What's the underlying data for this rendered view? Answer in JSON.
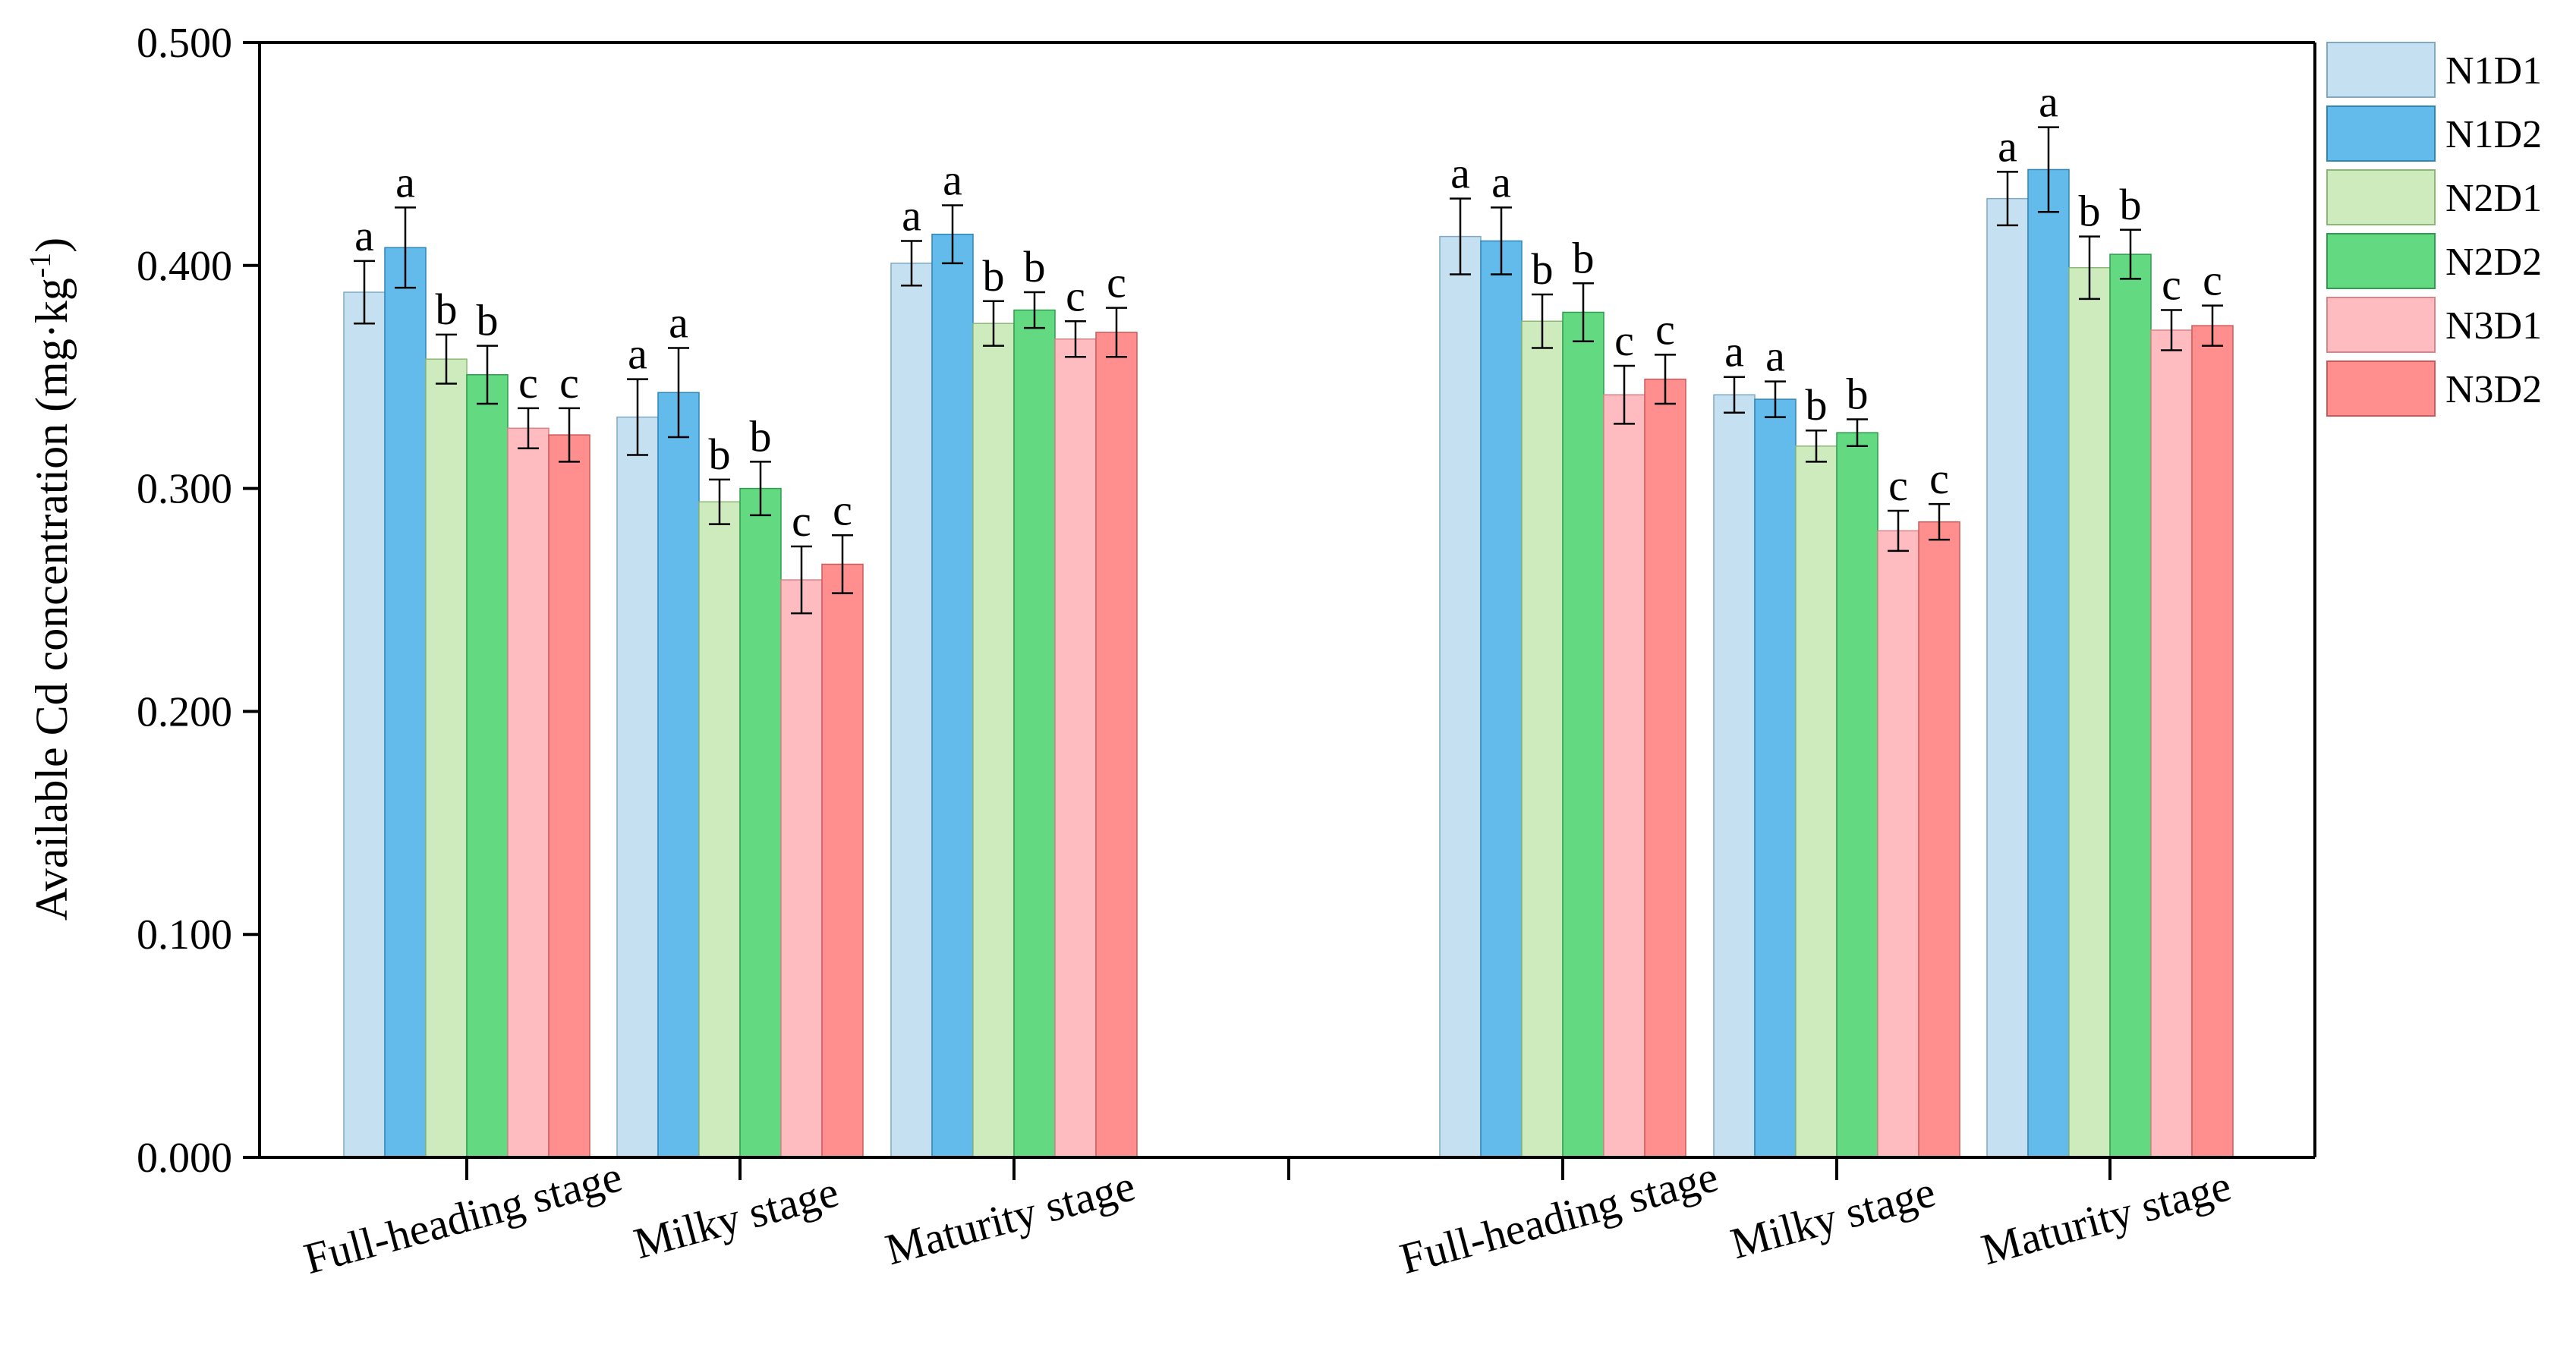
{
  "chart_data": {
    "type": "bar",
    "title": "",
    "xlabel": "",
    "ylabel": "Available Cd concentration (mg·kg",
    "ylabel_sup": "-1",
    "ylabel_close": ")",
    "ylim": [
      0,
      0.5
    ],
    "yticks": [
      0,
      0.1,
      0.2,
      0.3,
      0.4,
      0.5
    ],
    "ytick_labels": [
      "0.000",
      "0.100",
      "0.200",
      "0.300",
      "0.400",
      "0.500"
    ],
    "legend_position": "right",
    "series": [
      {
        "name": "N1D1",
        "color": "#c5e1f1",
        "stroke": "#7fa9c2"
      },
      {
        "name": "N1D2",
        "color": "#62bbeb",
        "stroke": "#2f86b6"
      },
      {
        "name": "N2D1",
        "color": "#cdebbd",
        "stroke": "#8cb877"
      },
      {
        "name": "N2D2",
        "color": "#63da82",
        "stroke": "#2e9d4e"
      },
      {
        "name": "N3D1",
        "color": "#ffbcc0",
        "stroke": "#d98387"
      },
      {
        "name": "N3D2",
        "color": "#ff8e8e",
        "stroke": "#cc5a5a"
      }
    ],
    "groups": [
      {
        "categories": [
          {
            "label": "Full-heading stage",
            "values": [
              0.388,
              0.408,
              0.358,
              0.351,
              0.327,
              0.324
            ],
            "errors": [
              0.014,
              0.018,
              0.011,
              0.013,
              0.009,
              0.012
            ],
            "letters": [
              "a",
              "a",
              "b",
              "b",
              "c",
              "c"
            ]
          },
          {
            "label": "Milky stage",
            "values": [
              0.332,
              0.343,
              0.294,
              0.3,
              0.259,
              0.266
            ],
            "errors": [
              0.017,
              0.02,
              0.01,
              0.012,
              0.015,
              0.013
            ],
            "letters": [
              "a",
              "a",
              "b",
              "b",
              "c",
              "c"
            ]
          },
          {
            "label": "Maturity stage",
            "values": [
              0.401,
              0.414,
              0.374,
              0.38,
              0.367,
              0.37
            ],
            "errors": [
              0.01,
              0.013,
              0.01,
              0.008,
              0.008,
              0.011
            ],
            "letters": [
              "a",
              "a",
              "b",
              "b",
              "c",
              "c"
            ]
          }
        ]
      },
      {
        "categories": [
          {
            "label": "Full-heading stage",
            "values": [
              0.413,
              0.411,
              0.375,
              0.379,
              0.342,
              0.349
            ],
            "errors": [
              0.017,
              0.015,
              0.012,
              0.013,
              0.013,
              0.011
            ],
            "letters": [
              "a",
              "a",
              "b",
              "b",
              "c",
              "c"
            ]
          },
          {
            "label": "Milky stage",
            "values": [
              0.342,
              0.34,
              0.319,
              0.325,
              0.281,
              0.285
            ],
            "errors": [
              0.008,
              0.008,
              0.007,
              0.006,
              0.009,
              0.008
            ],
            "letters": [
              "a",
              "a",
              "b",
              "b",
              "c",
              "c"
            ]
          },
          {
            "label": "Maturity stage",
            "values": [
              0.43,
              0.443,
              0.399,
              0.405,
              0.371,
              0.373
            ],
            "errors": [
              0.012,
              0.019,
              0.014,
              0.011,
              0.009,
              0.009
            ],
            "letters": [
              "a",
              "a",
              "b",
              "b",
              "c",
              "c"
            ]
          }
        ]
      }
    ]
  }
}
